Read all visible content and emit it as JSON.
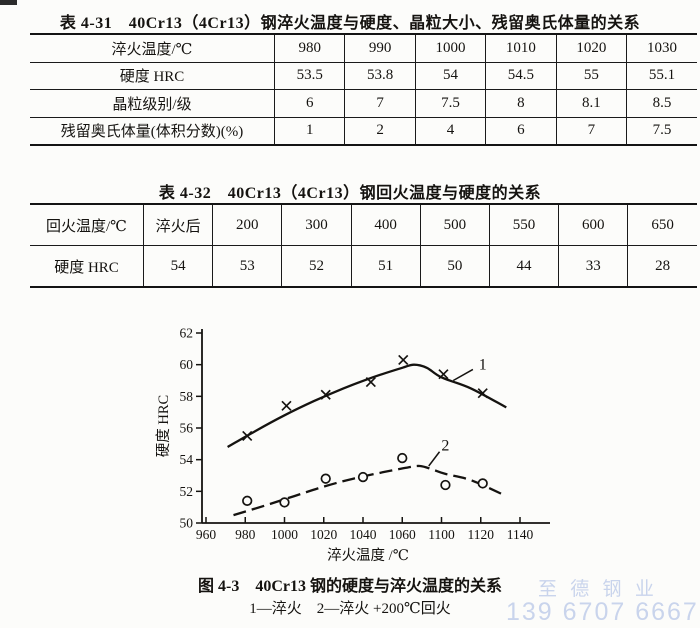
{
  "table1": {
    "title": "表 4-31　40Cr13（4Cr13）钢淬火温度与硬度、晶粒大小、残留奥氏体量的关系",
    "rows": [
      {
        "label": "淬火温度/℃",
        "values": [
          "980",
          "990",
          "1000",
          "1010",
          "1020",
          "1030"
        ]
      },
      {
        "label": "硬度 HRC",
        "values": [
          "53.5",
          "53.8",
          "54",
          "54.5",
          "55",
          "55.1"
        ]
      },
      {
        "label": "晶粒级别/级",
        "values": [
          "6",
          "7",
          "7.5",
          "8",
          "8.1",
          "8.5"
        ]
      },
      {
        "label": "残留奥氏体量(体积分数)(%)",
        "values": [
          "1",
          "2",
          "4",
          "6",
          "7",
          "7.5"
        ]
      }
    ]
  },
  "table2": {
    "title": "表 4-32　40Cr13（4Cr13）钢回火温度与硬度的关系",
    "rows": [
      {
        "label": "回火温度/℃",
        "values": [
          "淬火后",
          "200",
          "300",
          "400",
          "500",
          "550",
          "600",
          "650"
        ]
      },
      {
        "label": "硬度 HRC",
        "values": [
          "54",
          "53",
          "52",
          "51",
          "50",
          "44",
          "33",
          "28"
        ]
      }
    ]
  },
  "chart_data": {
    "type": "line",
    "xlabel": "淬火温度 /℃",
    "ylabel": "硬度 HRC",
    "ylim": [
      50,
      62
    ],
    "y_ticks": [
      50,
      52,
      54,
      56,
      58,
      60,
      62
    ],
    "x_tick_labels": [
      "960",
      "980",
      "1000",
      "1020",
      "1040",
      "1060",
      "1100",
      "1120",
      "1140"
    ],
    "series": [
      {
        "name": "1",
        "label": "淬火",
        "line": "solid",
        "marker": "x",
        "points": [
          [
            981,
            55.5
          ],
          [
            1001,
            57.4
          ],
          [
            1021,
            58.1
          ],
          [
            1044,
            58.9
          ],
          [
            1061,
            60.3
          ],
          [
            1101,
            59.4
          ],
          [
            1121,
            58.2
          ]
        ],
        "fit": [
          [
            971,
            54.8
          ],
          [
            985,
            55.8
          ],
          [
            1000,
            56.8
          ],
          [
            1015,
            57.7
          ],
          [
            1030,
            58.5
          ],
          [
            1045,
            59.2
          ],
          [
            1060,
            59.8
          ],
          [
            1072,
            60.0
          ],
          [
            1085,
            59.8
          ],
          [
            1100,
            59.2
          ],
          [
            1115,
            58.5
          ],
          [
            1133,
            57.3
          ]
        ]
      },
      {
        "name": "2",
        "label": "淬火 +200℃回火",
        "line": "dashed",
        "marker": "o",
        "points": [
          [
            981,
            51.4
          ],
          [
            1000,
            51.3
          ],
          [
            1021,
            52.8
          ],
          [
            1040,
            52.9
          ],
          [
            1060,
            54.1
          ],
          [
            1102,
            52.4
          ],
          [
            1121,
            52.5
          ]
        ],
        "fit": [
          [
            974,
            50.5
          ],
          [
            990,
            51.1
          ],
          [
            1005,
            51.7
          ],
          [
            1020,
            52.3
          ],
          [
            1035,
            52.8
          ],
          [
            1050,
            53.2
          ],
          [
            1065,
            53.5
          ],
          [
            1078,
            53.6
          ],
          [
            1090,
            53.4
          ],
          [
            1102,
            53.1
          ],
          [
            1115,
            52.7
          ],
          [
            1133,
            51.7
          ]
        ]
      }
    ],
    "annotations": [
      {
        "text": "1",
        "at": [
          1121,
          60.0
        ],
        "leader": [
          [
            1116,
            59.7
          ],
          [
            1106,
            59.0
          ]
        ]
      },
      {
        "text": "2",
        "at": [
          1102,
          54.9
        ],
        "leader": [
          [
            1098,
            54.5
          ],
          [
            1087,
            53.6
          ]
        ]
      }
    ]
  },
  "figure": {
    "caption": "图 4-3　40Cr13 钢的硬度与淬火温度的关系",
    "legend": "1—淬火　2—淬火 +200℃回火"
  },
  "watermark": {
    "line1": "至 德 钢 业",
    "line2": "139 6707 6667",
    "color": "#c9d4ec"
  },
  "ink_color": "#151310"
}
